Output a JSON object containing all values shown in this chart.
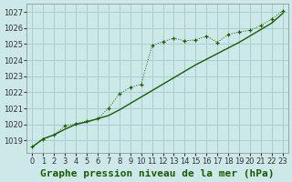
{
  "title": "Graphe pression niveau de la mer (hPa)",
  "bg_color": "#cce8e8",
  "grid_color": "#a8cece",
  "line_color": "#1a5c00",
  "xlim": [
    -0.5,
    23.5
  ],
  "ylim": [
    1018.2,
    1027.5
  ],
  "yticks": [
    1019,
    1020,
    1021,
    1022,
    1023,
    1024,
    1025,
    1026,
    1027
  ],
  "xticks": [
    0,
    1,
    2,
    3,
    4,
    5,
    6,
    7,
    8,
    9,
    10,
    11,
    12,
    13,
    14,
    15,
    16,
    17,
    18,
    19,
    20,
    21,
    22,
    23
  ],
  "series_solid_x": [
    0,
    1,
    2,
    3,
    4,
    5,
    6,
    7,
    8,
    9,
    10,
    11,
    12,
    13,
    14,
    15,
    16,
    17,
    18,
    19,
    20,
    21,
    22,
    23
  ],
  "series_solid_y": [
    1018.6,
    1019.1,
    1019.35,
    1019.7,
    1020.0,
    1020.15,
    1020.35,
    1020.55,
    1020.9,
    1021.3,
    1021.7,
    1022.1,
    1022.5,
    1022.9,
    1023.3,
    1023.7,
    1024.05,
    1024.4,
    1024.75,
    1025.1,
    1025.5,
    1025.9,
    1026.3,
    1026.9
  ],
  "series_dot_x": [
    0,
    1,
    2,
    3,
    4,
    5,
    6,
    7,
    8,
    9,
    10,
    11,
    12,
    13,
    14,
    15,
    16,
    17,
    18,
    19,
    20,
    21,
    22,
    23
  ],
  "series_dot_y": [
    1018.6,
    1019.1,
    1019.35,
    1019.9,
    1020.05,
    1020.2,
    1020.35,
    1021.0,
    1021.9,
    1022.3,
    1022.5,
    1024.9,
    1025.15,
    1025.35,
    1025.2,
    1025.25,
    1025.5,
    1025.1,
    1025.6,
    1025.75,
    1025.85,
    1026.15,
    1026.55,
    1027.05
  ],
  "title_fontsize": 8,
  "tick_fontsize": 6
}
